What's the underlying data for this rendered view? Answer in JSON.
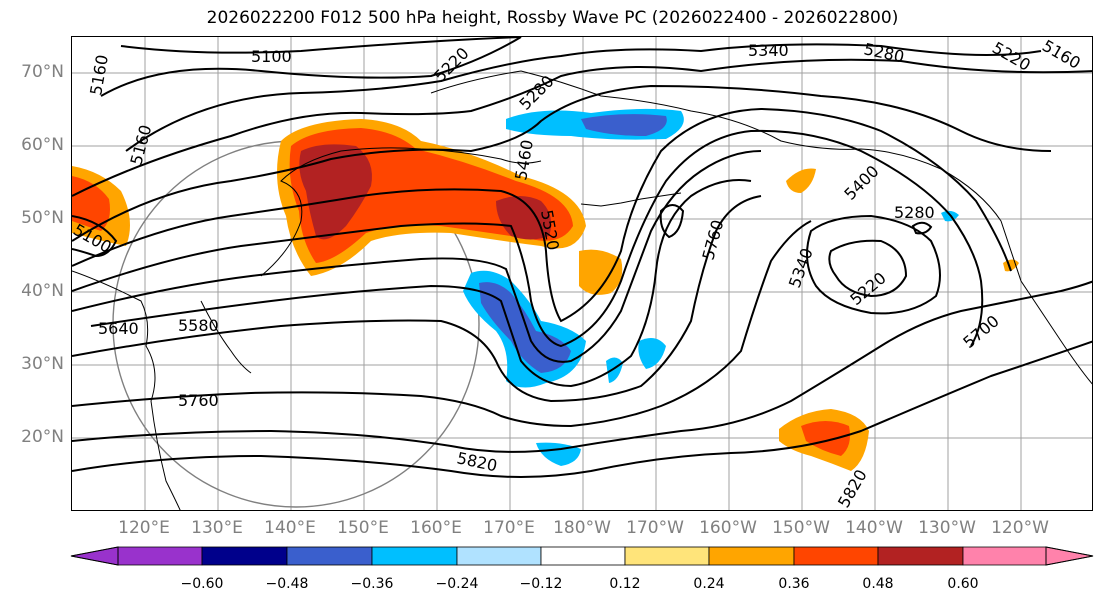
{
  "title": "2026022200 F012 500 hPa height, Rossby Wave PC (2026022400 - 2026022800)",
  "lat_labels": [
    "70°N",
    "60°N",
    "50°N",
    "40°N",
    "30°N",
    "20°N"
  ],
  "lon_labels": [
    "120°E",
    "130°E",
    "140°E",
    "150°E",
    "160°E",
    "170°E",
    "180°W",
    "170°W",
    "160°W",
    "150°W",
    "140°W",
    "130°W",
    "120°W"
  ],
  "contour_labels": [
    "5100",
    "5160",
    "5160",
    "5220",
    "5280",
    "5340",
    "5280",
    "5220",
    "5160",
    "5100",
    "5460",
    "5520",
    "5760",
    "5400",
    "5280",
    "5340",
    "5220",
    "5700",
    "5640",
    "5580",
    "5760",
    "5820",
    "5820"
  ],
  "colorbar": {
    "ticks": [
      "−0.60",
      "−0.48",
      "−0.36",
      "−0.24",
      "−0.12",
      "0.12",
      "0.24",
      "0.36",
      "0.48",
      "0.60"
    ],
    "colors": [
      "#9932cc",
      "#00008b",
      "#3a5fcd",
      "#00bfff",
      "#b0e2ff",
      "#ffffff",
      "#ffe47a",
      "#ffa500",
      "#ff4500",
      "#b22222",
      "#ff82ab"
    ]
  },
  "colors": {
    "positive_anomaly": "#b22222",
    "negative_anomaly": "#3a5fcd",
    "contour": "#000000",
    "grid": "#a0a0a0"
  }
}
